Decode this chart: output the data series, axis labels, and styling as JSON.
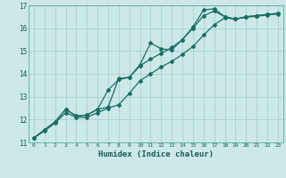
{
  "xlabel": "Humidex (Indice chaleur)",
  "xlim": [
    -0.5,
    23.5
  ],
  "ylim": [
    11,
    17
  ],
  "yticks": [
    11,
    12,
    13,
    14,
    15,
    16,
    17
  ],
  "xticks": [
    0,
    1,
    2,
    3,
    4,
    5,
    6,
    7,
    8,
    9,
    10,
    11,
    12,
    13,
    14,
    15,
    16,
    17,
    18,
    19,
    20,
    21,
    22,
    23
  ],
  "bg_color": "#cce8e8",
  "grid_color": "#aacfcf",
  "line_color": "#1a6e62",
  "line1_y": [
    11.2,
    11.55,
    11.9,
    12.45,
    12.15,
    12.2,
    12.45,
    12.55,
    13.8,
    13.85,
    14.4,
    15.35,
    15.1,
    15.05,
    15.5,
    16.05,
    16.8,
    16.85,
    16.5,
    16.4,
    16.5,
    16.55,
    16.6,
    16.65
  ],
  "line2_y": [
    11.2,
    11.55,
    11.9,
    12.45,
    12.15,
    12.2,
    12.45,
    13.3,
    13.75,
    13.85,
    14.35,
    14.65,
    14.9,
    15.15,
    15.5,
    16.0,
    16.55,
    16.75,
    16.5,
    16.4,
    16.5,
    16.55,
    16.6,
    16.65
  ],
  "line3_y": [
    11.2,
    11.5,
    11.85,
    12.3,
    12.1,
    12.1,
    12.3,
    12.5,
    12.65,
    13.15,
    13.7,
    14.0,
    14.3,
    14.55,
    14.85,
    15.2,
    15.7,
    16.15,
    16.45,
    16.4,
    16.48,
    16.52,
    16.58,
    16.62
  ]
}
